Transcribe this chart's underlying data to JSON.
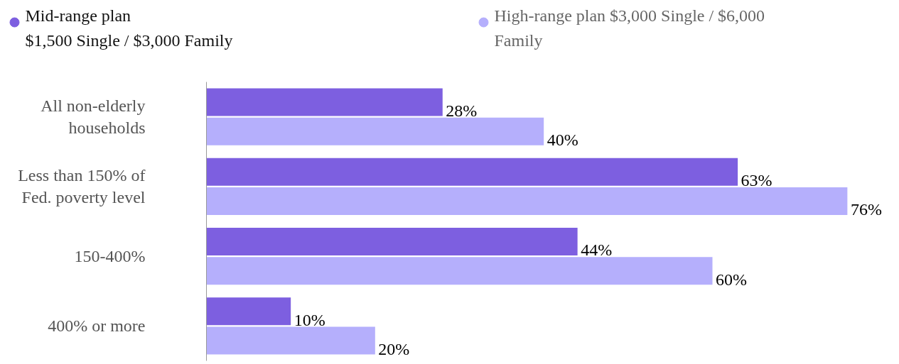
{
  "chart_data": {
    "type": "bar",
    "orientation": "horizontal",
    "categories": [
      "All non-elderly\nhouseholds",
      "Less than 150% of\nFed. poverty level",
      "150-400%",
      "400% or more"
    ],
    "series": [
      {
        "name": "Mid-range plan\n$1,500 Single / $3,000 Family",
        "color": "#7d5fe0",
        "values": [
          28,
          63,
          44,
          10
        ],
        "value_labels": [
          "28%",
          "63%",
          "44%",
          "10%"
        ]
      },
      {
        "name": "High-range plan $3,000 Single / $6,000\nFamily",
        "color": "#b5affc",
        "values": [
          40,
          76,
          60,
          20
        ],
        "value_labels": [
          "40%",
          "76%",
          "60%",
          "20%"
        ]
      }
    ],
    "legend": "top",
    "grid": false
  }
}
